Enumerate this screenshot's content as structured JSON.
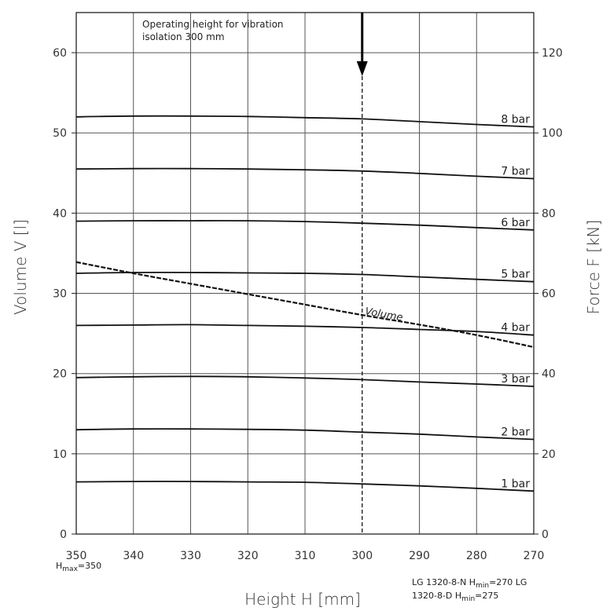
{
  "chart_data": {
    "type": "line",
    "xlabel": "Height H [mm]",
    "ylabel": "Volume V [l]",
    "y2label": "Force F [kN]",
    "xlim": [
      350,
      270
    ],
    "x_reversed": true,
    "x_ticks": [
      350,
      340,
      330,
      320,
      310,
      300,
      290,
      280,
      270
    ],
    "ylim": [
      0,
      65
    ],
    "y_ticks": [
      0,
      10,
      20,
      30,
      40,
      50,
      60
    ],
    "y2lim": [
      0,
      130
    ],
    "y2_ticks": [
      0,
      20,
      40,
      60,
      80,
      100,
      120
    ],
    "grid": true,
    "x": [
      350,
      340,
      330,
      320,
      310,
      300,
      290,
      280,
      270
    ],
    "force_series": [
      {
        "name": "1 bar",
        "values": [
          13.0,
          13.1,
          13.1,
          13.0,
          12.9,
          12.5,
          12.0,
          11.4,
          10.7
        ]
      },
      {
        "name": "2 bar",
        "values": [
          26.0,
          26.2,
          26.2,
          26.1,
          25.9,
          25.4,
          24.9,
          24.2,
          23.6
        ]
      },
      {
        "name": "3 bar",
        "values": [
          39.0,
          39.2,
          39.3,
          39.2,
          38.9,
          38.5,
          37.9,
          37.4,
          36.8
        ]
      },
      {
        "name": "4 bar",
        "values": [
          52.0,
          52.1,
          52.2,
          52.0,
          51.8,
          51.5,
          51.0,
          50.5,
          49.6
        ]
      },
      {
        "name": "5 bar",
        "values": [
          65.0,
          65.2,
          65.2,
          65.1,
          65.0,
          64.7,
          64.1,
          63.5,
          62.9
        ]
      },
      {
        "name": "6 bar",
        "values": [
          78.0,
          78.1,
          78.1,
          78.1,
          77.9,
          77.5,
          77.0,
          76.4,
          75.8
        ]
      },
      {
        "name": "7 bar",
        "values": [
          91.0,
          91.1,
          91.1,
          91.0,
          90.8,
          90.5,
          89.9,
          89.2,
          88.6
        ]
      },
      {
        "name": "8 bar",
        "values": [
          104.0,
          104.2,
          104.2,
          104.1,
          103.8,
          103.5,
          102.8,
          102.1,
          101.5
        ]
      }
    ],
    "volume_series": {
      "name": "Volume",
      "values": [
        33.9,
        32.5,
        31.2,
        29.9,
        28.6,
        27.3,
        26.1,
        24.8,
        23.3
      ]
    },
    "annotation": {
      "text_line1": "Operating height for vibration",
      "text_line2": "isolation 300 mm",
      "x": 300
    },
    "footnotes": {
      "hmax": {
        "main": "H",
        "sub": "max",
        "rest": "=350"
      },
      "n_line1": {
        "pre": "LG  1320-8-N  H",
        "sub": "min",
        "rest": "=270 LG"
      },
      "n_line2": {
        "pre": "1320-8-D  H",
        "sub": "min",
        "rest": "=275"
      }
    }
  }
}
